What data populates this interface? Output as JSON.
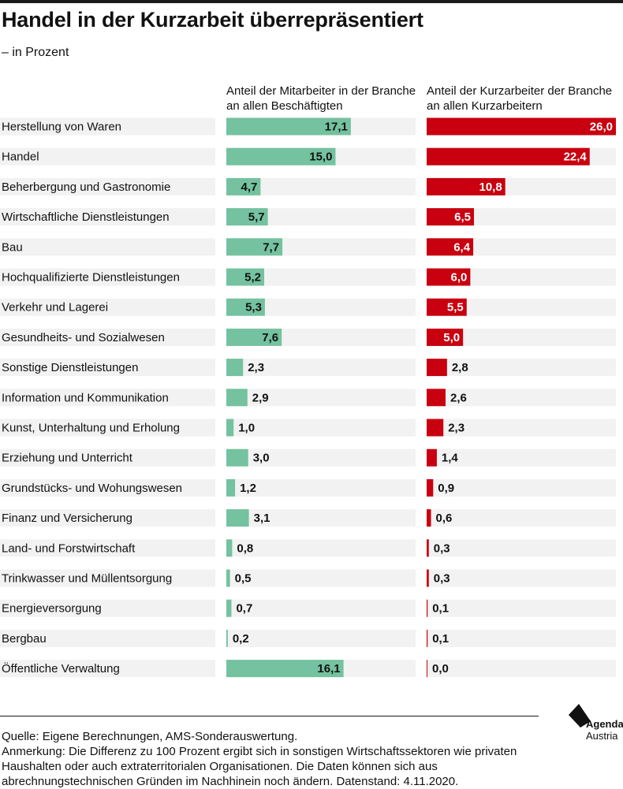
{
  "title": "Handel in der Kurzarbeit überrepräsentiert",
  "subtitle": "– in Prozent",
  "source": "Quelle: Eigene Berechnungen, AMS-Sonderauswertung.",
  "note": "Anmerkung: Die Differenz zu 100 Prozent ergibt sich in sonstigen Wirtschaftssektoren wie privaten Haushalten oder auch extraterritorialen Organisationen. Die Daten können sich aus abrechnungstechnischen Gründen im Nachhinein noch ändern. Datenstand: 4.11.2020.",
  "logo": {
    "word1": "Agenda",
    "word2": "Austria"
  },
  "colors": {
    "green": "#74c29f",
    "red": "#c8000f",
    "row_bg": "#f2f2f2"
  },
  "chart_data": {
    "type": "bar",
    "categories": [
      "Herstellung von Waren",
      "Handel",
      "Beherbergung und Gastronomie",
      "Wirtschaftliche Dienstleistungen",
      "Bau",
      "Hochqualifizierte Dienstleistungen",
      "Verkehr und Lagerei",
      "Gesundheits- und Sozialwesen",
      "Sonstige Dienstleistungen",
      "Information und Kommunikation",
      "Kunst, Unterhaltung und Erholung",
      "Erziehung und Unterricht",
      "Grundstücks- und Wohungswesen",
      "Finanz und Versicherung",
      "Land- und Forstwirtschaft",
      "Trinkwasser und Müllentsorgung",
      "Energieversorgung",
      "Bergbau",
      "Öffentliche Verwaltung"
    ],
    "series": [
      {
        "name": "Anteil der Mitarbeiter in der Branche an allen Beschäftigten",
        "color": "#74c29f",
        "values": [
          17.1,
          15.0,
          4.7,
          5.7,
          7.7,
          5.2,
          5.3,
          7.6,
          2.3,
          2.9,
          1.0,
          3.0,
          1.2,
          3.1,
          0.8,
          0.5,
          0.7,
          0.2,
          16.1
        ],
        "labels": [
          "17,1",
          "15,0",
          "4,7",
          "5,7",
          "7,7",
          "5,2",
          "5,3",
          "7,6",
          "2,3",
          "2,9",
          "1,0",
          "3,0",
          "1,2",
          "3,1",
          "0,8",
          "0,5",
          "0,7",
          "0,2",
          "16,1"
        ]
      },
      {
        "name": "Anteil der Kurzarbeiter der Branche an allen Kurzarbeitern",
        "color": "#c8000f",
        "values": [
          26.0,
          22.4,
          10.8,
          6.5,
          6.4,
          6.0,
          5.5,
          5.0,
          2.8,
          2.6,
          2.3,
          1.4,
          0.9,
          0.6,
          0.3,
          0.3,
          0.1,
          0.1,
          0.0
        ],
        "labels": [
          "26,0",
          "22,4",
          "10,8",
          "6,5",
          "6,4",
          "6,0",
          "5,5",
          "5,0",
          "2,8",
          "2,6",
          "2,3",
          "1,4",
          "0,9",
          "0,6",
          "0,3",
          "0,3",
          "0,1",
          "0,1",
          "0,0"
        ]
      }
    ],
    "xlim": [
      0,
      26
    ],
    "grid": false
  }
}
